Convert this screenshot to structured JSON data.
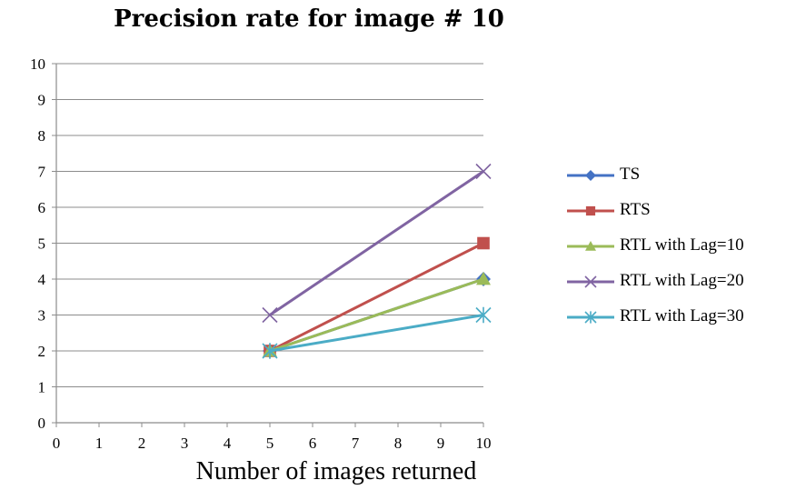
{
  "chart_data": {
    "type": "line",
    "title": "Precision rate for image # 10",
    "xlabel": "Number of images returned",
    "ylabel": "",
    "xlim": [
      0,
      10
    ],
    "ylim": [
      0,
      10
    ],
    "xticks": [
      0,
      1,
      2,
      3,
      4,
      5,
      6,
      7,
      8,
      9,
      10
    ],
    "yticks": [
      0,
      1,
      2,
      3,
      4,
      5,
      6,
      7,
      8,
      9,
      10
    ],
    "grid": "horizontal",
    "legend_position": "right",
    "series": [
      {
        "name": "TS",
        "color": "#4472C4",
        "marker": "diamond",
        "points": [
          [
            5,
            2
          ],
          [
            10,
            4
          ]
        ]
      },
      {
        "name": "RTS",
        "color": "#C0504D",
        "marker": "square",
        "points": [
          [
            5,
            2
          ],
          [
            10,
            5
          ]
        ]
      },
      {
        "name": "RTL with Lag=10",
        "color": "#9BBB59",
        "marker": "triangle",
        "points": [
          [
            5,
            2
          ],
          [
            10,
            4
          ]
        ]
      },
      {
        "name": "RTL with Lag=20",
        "color": "#8064A2",
        "marker": "x",
        "points": [
          [
            5,
            3
          ],
          [
            10,
            7
          ]
        ]
      },
      {
        "name": "RTL with Lag=30",
        "color": "#4BACC6",
        "marker": "star",
        "points": [
          [
            5,
            2
          ],
          [
            10,
            3
          ]
        ]
      }
    ]
  }
}
